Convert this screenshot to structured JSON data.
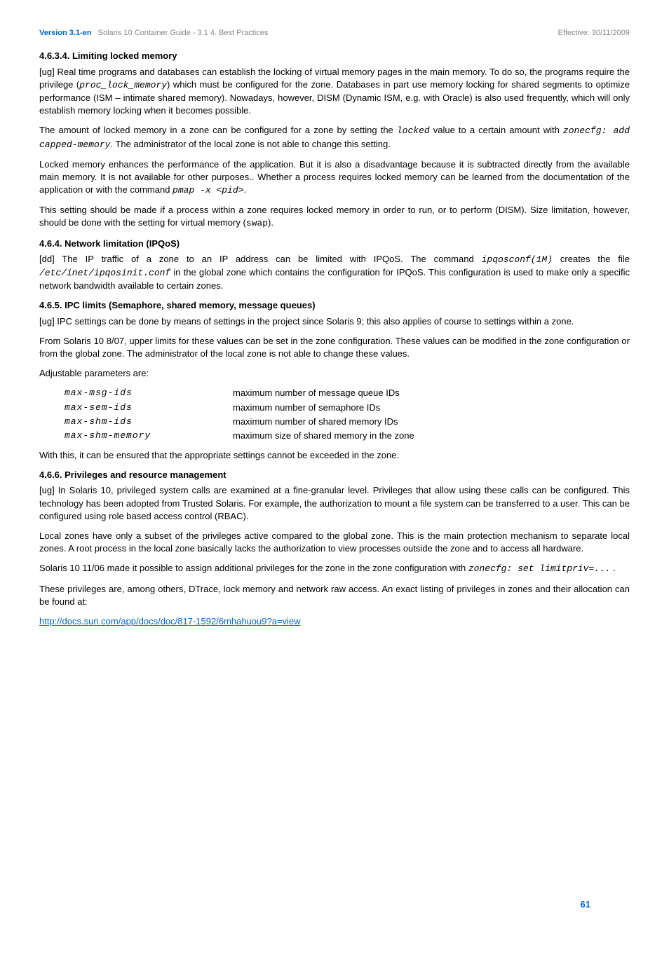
{
  "header": {
    "version": "Version 3.1-en",
    "subtitle": "Solaris 10 Container Guide - 3.1   4. Best Practices",
    "effective": "Effective: 30/11/2009"
  },
  "s1": {
    "title": "4.6.3.4. Limiting locked memory",
    "p1a": "[ug] Real time programs and databases can establish the locking of virtual memory pages in the main memory. To do so, the programs require the privilege (",
    "p1code": "proc_lock_memory",
    "p1b": ") which must be configured for the zone. Databases in part use memory locking for shared segments to optimize performance (ISM – intimate shared memory). Nowadays, however, DISM (Dynamic ISM, e.g. with Oracle) is also used frequently, which will only establish memory locking when it becomes possible.",
    "p2a": "The amount of locked memory in a zone can be configured for a zone by setting the ",
    "p2code1": "locked",
    "p2b": " value to a certain amount with ",
    "p2code2": "zonecfg: add capped-memory",
    "p2c": ". The administrator of the local zone is not able to change this setting.",
    "p3a": "Locked memory enhances the performance of the application. But it is also a disadvantage because it is subtracted directly from the available main memory. It is not available for other purposes.. Whether a process requires locked memory can be learned from the documentation of the application or with the command ",
    "p3code": "pmap -x <pid>",
    "p3b": ".",
    "p4a": "This setting should be made if a process within a zone requires locked memory in order to run, or to perform (DISM). Size limitation, however, should be done with the setting for virtual memory (",
    "p4code": "swap",
    "p4b": ")."
  },
  "s2": {
    "title": "4.6.4. Network limitation (IPQoS)",
    "p1a": "[dd] The IP traffic of a zone to an IP address can be limited with IPQoS. The command ",
    "p1code1": "ipqosconf(1M)",
    "p1b": " creates the file ",
    "p1code2": "/etc/inet/ipqosinit.conf",
    "p1c": " in the global zone which contains the configuration for IPQoS. This configuration is used to make only a specific network bandwidth available to certain zones."
  },
  "s3": {
    "title": "4.6.5. IPC limits (Semaphore, shared memory, message queues)",
    "p1": "[ug] IPC settings can be done by means of settings in the project since Solaris 9; this also applies of course to settings within a zone.",
    "p2": "From Solaris 10 8/07, upper limits for these values can be set in the zone configuration. These values can be modified in the zone configuration or from the global zone. The administrator of the local zone is not able to change these values.",
    "p3": "Adjustable parameters are:",
    "params": [
      {
        "name": "max-msg-ids",
        "desc": "maximum number of message queue IDs"
      },
      {
        "name": "max-sem-ids",
        "desc": "maximum number of semaphore IDs"
      },
      {
        "name": "max-shm-ids",
        "desc": "maximum number of shared memory IDs"
      },
      {
        "name": "max-shm-memory",
        "desc": "maximum size of shared memory in the zone"
      }
    ],
    "p4": "With this, it can be ensured that the appropriate settings cannot be exceeded in the zone."
  },
  "s4": {
    "title": "4.6.6. Privileges and resource management",
    "p1": "[ug] In Solaris 10, privileged system calls are examined at a fine-granular level. Privileges that allow using these calls can be configured. This technology has been adopted from Trusted Solaris. For example, the authorization to mount a file system can be transferred to a user. This can be configured using role based access control (RBAC).",
    "p2": "Local zones have only a subset of the privileges active compared to the global zone. This is the main protection mechanism to separate local zones. A root process in the local zone basically lacks the authorization to view processes outside the zone and to access all hardware.",
    "p3a": "Solaris 10 11/06 made it possible to assign additional privileges for the zone in the zone configuration with ",
    "p3code": "zonecfg: set limitpriv=...",
    "p3b": " .",
    "p4": "These privileges are, among others, DTrace, lock memory and network raw access. An exact listing of privileges in zones and their allocation can be found at:",
    "link": "http://docs.sun.com/app/docs/doc/817-1592/6mhahuou9?a=view"
  },
  "pagenum": "61"
}
